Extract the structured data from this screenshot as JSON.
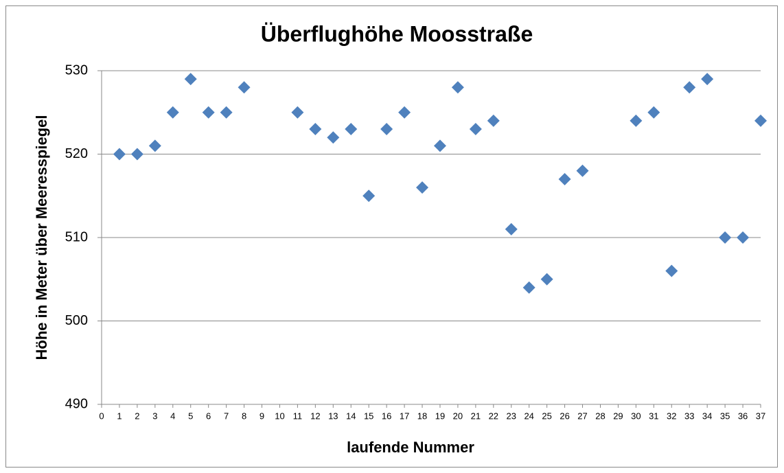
{
  "chart_data": {
    "type": "scatter",
    "title": "Überflughöhe Moosstraße",
    "x_label": "laufende Nummer",
    "y_label": "Höhe in Meter über Meeresspiegel",
    "series": [
      {
        "name": "Höhe",
        "color": "#4f81bd",
        "x": [
          1,
          2,
          3,
          4,
          5,
          6,
          7,
          8,
          11,
          12,
          13,
          14,
          15,
          16,
          17,
          18,
          19,
          20,
          21,
          22,
          23,
          24,
          25,
          26,
          27,
          30,
          31,
          32,
          33,
          34,
          35,
          36,
          37
        ],
        "values": [
          520,
          520,
          521,
          525,
          529,
          525,
          525,
          528,
          525,
          523,
          522,
          523,
          515,
          523,
          525,
          516,
          521,
          528,
          523,
          524,
          511,
          504,
          505,
          517,
          518,
          524,
          525,
          506,
          528,
          529,
          510,
          510,
          524
        ]
      }
    ],
    "xlim": [
      0,
      37
    ],
    "xticks": [
      0,
      1,
      2,
      3,
      4,
      5,
      6,
      7,
      8,
      9,
      10,
      11,
      12,
      13,
      14,
      15,
      16,
      17,
      18,
      19,
      20,
      21,
      22,
      23,
      24,
      25,
      26,
      27,
      28,
      29,
      30,
      31,
      32,
      33,
      34,
      35,
      36,
      37
    ],
    "ylim": [
      490,
      530
    ],
    "yticks": [
      490,
      500,
      510,
      520,
      530
    ],
    "grid": true
  }
}
